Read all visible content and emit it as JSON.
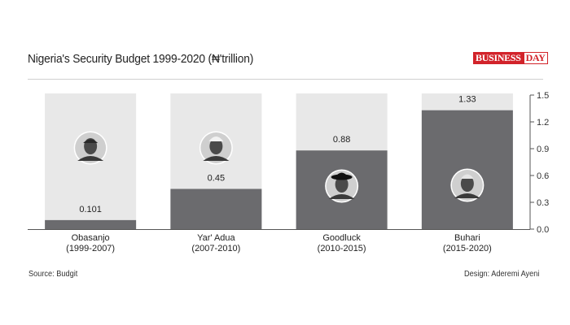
{
  "title": "Nigeria's Security Budget 1999-2020 (₦'trillion)",
  "logo": {
    "text_a": "BUSINESS",
    "text_b": "DAY"
  },
  "source": "Source: Budgit",
  "design": "Design: Aderemi Ayeni",
  "colors": {
    "bar": "#6b6b6e",
    "background_column": "#e8e8e8",
    "axis": "#555555"
  },
  "chart_data": {
    "type": "bar",
    "title": "Nigeria's Security Budget 1999-2020 (₦'trillion)",
    "categories": [
      {
        "name": "Obasanjo",
        "period": "(1999-2007)",
        "icon": "obasanjo-portrait-icon"
      },
      {
        "name": "Yar' Adua",
        "period": "(2007-2010)",
        "icon": "yaradua-portrait-icon"
      },
      {
        "name": "Goodluck",
        "period": "(2010-2015)",
        "icon": "goodluck-portrait-icon"
      },
      {
        "name": "Buhari",
        "period": "(2015-2020)",
        "icon": "buhari-portrait-icon"
      }
    ],
    "values": [
      0.101,
      0.45,
      0.88,
      1.33
    ],
    "value_labels": [
      "0.101",
      "0.45",
      "0.88",
      "1.33"
    ],
    "ylim": [
      0,
      1.5
    ],
    "yticks": [
      "0.0",
      "0.3",
      "0.6",
      "0.9",
      "1.2",
      "1.5"
    ],
    "ytick_values": [
      0,
      0.3,
      0.6,
      0.9,
      1.2,
      1.5
    ],
    "y_axis_position": "right",
    "xlabel": "",
    "ylabel": ""
  }
}
